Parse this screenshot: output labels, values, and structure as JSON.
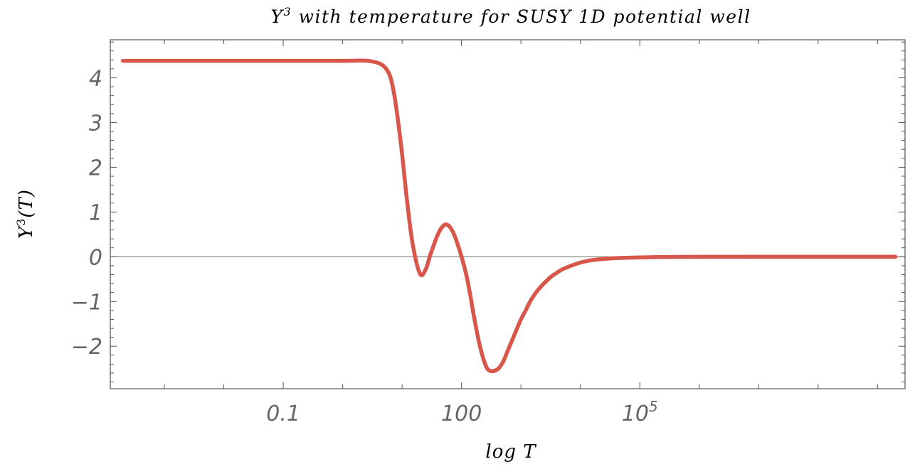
{
  "chart_data": {
    "type": "line",
    "title_main": "Y",
    "title_sup": "3",
    "title_rest": " with temperature for SUSY 1D potential well",
    "xlabel": "log T",
    "ylabel_main": "Y",
    "ylabel_sup": "3",
    "ylabel_rest": "(T)",
    "x_scale": "log10",
    "xlim": [
      0.000123,
      2900000000
    ],
    "ylim": [
      -2.95,
      4.85
    ],
    "x_ticks": [
      {
        "value": 0.1,
        "label": "0.1"
      },
      {
        "value": 100,
        "label": "100"
      },
      {
        "value": 100000,
        "label": "10",
        "sup": "5"
      }
    ],
    "y_ticks": [
      {
        "value": -2,
        "label": "−2"
      },
      {
        "value": -1,
        "label": "−1"
      },
      {
        "value": 0,
        "label": "0"
      },
      {
        "value": 1,
        "label": "1"
      },
      {
        "value": 2,
        "label": "2"
      },
      {
        "value": 3,
        "label": "3"
      },
      {
        "value": 4,
        "label": "4"
      }
    ],
    "y_minor_step": 0.2,
    "zero_line": true,
    "grid": false,
    "series": [
      {
        "color": "#d9574a",
        "x": [
          0.0002,
          0.001,
          0.01,
          0.1,
          1,
          3,
          5.4,
          7.2,
          9.6,
          12,
          15,
          20,
          25,
          30,
          40,
          50,
          60,
          72,
          85,
          100,
          120,
          140,
          160,
          200,
          250,
          300,
          400,
          500,
          600,
          800,
          1000,
          1200,
          1500,
          2000,
          3000,
          4000,
          5000,
          7000,
          10000,
          15000,
          20000,
          30000,
          50000,
          100000,
          200000,
          500000,
          1000000,
          10000000,
          100000000,
          2000000000
        ],
        "y": [
          4.38,
          4.38,
          4.38,
          4.38,
          4.38,
          4.37,
          4.2,
          3.7,
          2.5,
          1.3,
          0.3,
          -0.38,
          -0.28,
          0.05,
          0.5,
          0.7,
          0.7,
          0.55,
          0.3,
          0.0,
          -0.4,
          -0.85,
          -1.3,
          -1.95,
          -2.4,
          -2.55,
          -2.52,
          -2.35,
          -2.1,
          -1.7,
          -1.4,
          -1.2,
          -0.95,
          -0.72,
          -0.48,
          -0.36,
          -0.28,
          -0.2,
          -0.13,
          -0.08,
          -0.06,
          -0.04,
          -0.025,
          -0.015,
          -0.008,
          -0.004,
          -0.002,
          0.0,
          0.0,
          0.0
        ]
      }
    ]
  }
}
